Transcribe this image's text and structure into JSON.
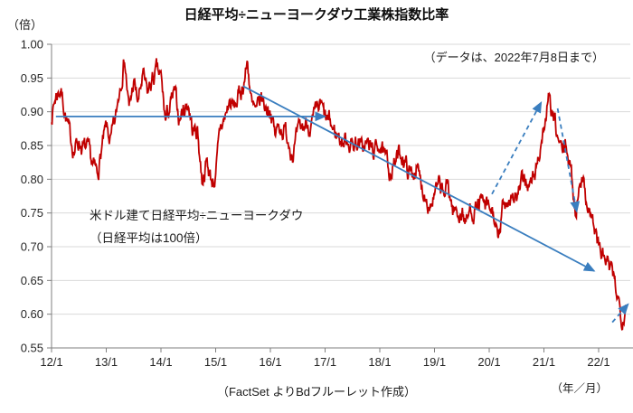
{
  "title": "日経平均÷ニューヨークダウ工業株指数比率",
  "y_unit_label": "（倍）",
  "x_unit_label": "（年／月）",
  "data_note": "（データは、2022年7月8日まで）",
  "series_annotation": {
    "line1": "米ドル建て日経平均÷ニューヨークダウ",
    "line2": "（日経平均は100倍）"
  },
  "footer": "（FactSet よりBdフルーレット作成）",
  "chart_data": {
    "type": "line",
    "title": "日経平均÷ニューヨークダウ工業株指数比率",
    "xlabel": "（年／月）",
    "ylabel": "（倍）",
    "ylim": [
      0.55,
      1.0
    ],
    "xlim_years": [
      2012.0,
      2022.58
    ],
    "grid": "horizontal",
    "x_tick_labels": [
      "12/1",
      "13/1",
      "14/1",
      "15/1",
      "16/1",
      "17/1",
      "18/1",
      "19/1",
      "20/1",
      "21/1",
      "22/1"
    ],
    "x_tick_years": [
      2012,
      2013,
      2014,
      2015,
      2016,
      2017,
      2018,
      2019,
      2020,
      2021,
      2022
    ],
    "y_ticks": [
      0.55,
      0.6,
      0.65,
      0.7,
      0.75,
      0.8,
      0.85,
      0.9,
      0.95,
      1.0
    ],
    "y_tick_labels": [
      "0.55",
      "0.60",
      "0.65",
      "0.70",
      "0.75",
      "0.80",
      "0.85",
      "0.90",
      "0.95",
      "1.00"
    ],
    "series": [
      {
        "name": "米ドル建て日経平均÷ニューヨークダウ（日経平均は100倍）",
        "start": "2012-01",
        "interval": "monthly",
        "end_note": "データは2022年7月8日まで",
        "values": [
          0.895,
          0.925,
          0.935,
          0.9,
          0.862,
          0.845,
          0.858,
          0.846,
          0.838,
          0.818,
          0.806,
          0.845,
          0.872,
          0.855,
          0.882,
          0.94,
          0.985,
          0.9,
          0.944,
          0.912,
          0.952,
          0.925,
          0.945,
          0.958,
          0.948,
          0.885,
          0.908,
          0.924,
          0.89,
          0.905,
          0.914,
          0.87,
          0.874,
          0.8,
          0.826,
          0.8,
          0.802,
          0.874,
          0.89,
          0.914,
          0.905,
          0.92,
          0.94,
          0.974,
          0.905,
          0.894,
          0.92,
          0.906,
          0.908,
          0.864,
          0.88,
          0.874,
          0.86,
          0.842,
          0.862,
          0.875,
          0.884,
          0.88,
          0.892,
          0.908,
          0.888,
          0.882,
          0.87,
          0.864,
          0.855,
          0.862,
          0.85,
          0.858,
          0.844,
          0.854,
          0.845,
          0.84,
          0.858,
          0.828,
          0.815,
          0.82,
          0.832,
          0.838,
          0.815,
          0.806,
          0.82,
          0.79,
          0.78,
          0.766,
          0.776,
          0.786,
          0.776,
          0.79,
          0.756,
          0.75,
          0.752,
          0.736,
          0.758,
          0.755,
          0.766,
          0.756,
          0.752,
          0.748,
          0.7,
          0.758,
          0.772,
          0.78,
          0.772,
          0.788,
          0.8,
          0.79,
          0.806,
          0.842,
          0.876,
          0.914,
          0.89,
          0.86,
          0.838,
          0.848,
          0.808,
          0.748,
          0.814,
          0.78,
          0.758,
          0.73,
          0.7,
          0.685,
          0.672,
          0.655,
          0.634,
          0.598,
          0.614
        ]
      }
    ],
    "annotations": {
      "arrows": [
        {
          "style": "solid",
          "from_year": 2012.08,
          "from_value": 0.893,
          "to_year": 2017.0,
          "to_value": 0.893
        },
        {
          "style": "solid",
          "from_year": 2015.5,
          "from_value": 0.938,
          "to_year": 2021.92,
          "to_value": 0.664
        },
        {
          "style": "dashed",
          "from_year": 2020.05,
          "from_value": 0.778,
          "to_year": 2020.95,
          "to_value": 0.914
        },
        {
          "style": "dashed",
          "from_year": 2021.25,
          "from_value": 0.905,
          "to_year": 2021.6,
          "to_value": 0.752
        },
        {
          "style": "dashed",
          "from_year": 2022.25,
          "from_value": 0.588,
          "to_year": 2022.54,
          "to_value": 0.615
        }
      ]
    },
    "colors": {
      "line": "#C00000",
      "arrow": "#3A7EBF",
      "grid": "#D9D9D9",
      "axis": "#7F7F7F",
      "text": "#262626"
    }
  }
}
